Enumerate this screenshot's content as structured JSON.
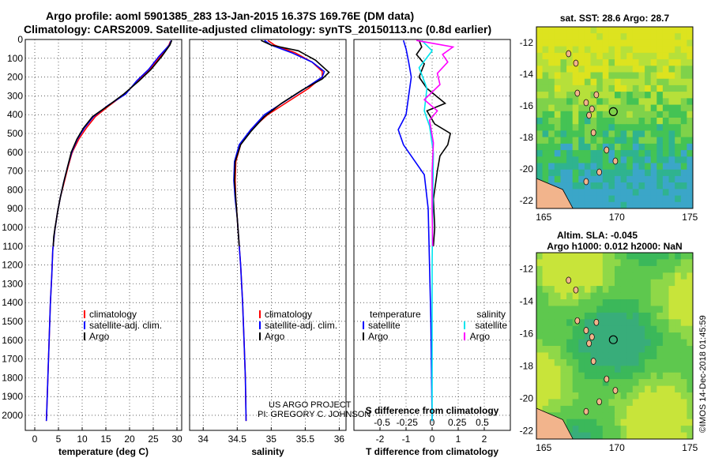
{
  "header": {
    "title_line1": "Argo profile: aoml 5901385_283 13-Jan-2015 16.37S 169.76E (DM data)",
    "title_line2": "Climatology: CARS2009. Satellite-adjusted climatology: synTS_20150113.nc (0.8d earlier)"
  },
  "credits": {
    "project": "US ARGO PROJECT",
    "pi": "PI: GREGORY C. JOHNSON",
    "imos": "©IMOS 14-Dec-2018 01:45:59"
  },
  "colors": {
    "climatology": "#ff0000",
    "satellite": "#0000ff",
    "argo": "#000000",
    "sal_satellite": "#00e5ee",
    "sal_argo": "#ff00ff",
    "land": "#f2b48c",
    "ocean": "#3cb84a",
    "marker": "#000000"
  },
  "chart_data": [
    {
      "type": "line",
      "id": "temperature",
      "xlabel": "temperature (deg C)",
      "ylabel": "",
      "xlim": [
        -2,
        31
      ],
      "ylim": [
        2080,
        0
      ],
      "xticks": [
        0,
        5,
        10,
        15,
        20,
        25,
        30
      ],
      "yticks": [
        0,
        100,
        200,
        300,
        400,
        500,
        600,
        700,
        800,
        900,
        1000,
        1100,
        1200,
        1300,
        1400,
        1500,
        1600,
        1700,
        1800,
        1900,
        2000
      ],
      "legend": [
        "climatology",
        "satellite-adj. clim.",
        "Argo"
      ],
      "legend_position": "bottom-center",
      "series": [
        {
          "name": "climatology",
          "color": "#ff0000",
          "points": [
            [
              28.6,
              10
            ],
            [
              28.3,
              30
            ],
            [
              26.5,
              90
            ],
            [
              24.2,
              160
            ],
            [
              21.8,
              220
            ],
            [
              19.0,
              290
            ],
            [
              15.8,
              350
            ],
            [
              12.8,
              410
            ],
            [
              10.9,
              470
            ],
            [
              9.3,
              530
            ],
            [
              7.9,
              600
            ],
            [
              7.0,
              680
            ],
            [
              6.2,
              760
            ],
            [
              5.4,
              840
            ],
            [
              4.8,
              920
            ],
            [
              4.2,
              1020
            ],
            [
              3.8,
              1120
            ],
            [
              3.6,
              1250
            ],
            [
              3.3,
              1400
            ],
            [
              3.1,
              1550
            ],
            [
              2.9,
              1700
            ],
            [
              2.7,
              1850
            ],
            [
              2.5,
              2000
            ],
            [
              2.45,
              2030
            ]
          ]
        },
        {
          "name": "satellite-adj. clim.",
          "color": "#0000ff",
          "points": [
            [
              28.8,
              5
            ],
            [
              28.4,
              30
            ],
            [
              26.2,
              90
            ],
            [
              24.0,
              160
            ],
            [
              21.5,
              220
            ],
            [
              19.2,
              290
            ],
            [
              15.5,
              350
            ],
            [
              12.4,
              410
            ],
            [
              10.5,
              470
            ],
            [
              9.0,
              530
            ],
            [
              7.8,
              600
            ],
            [
              6.9,
              680
            ],
            [
              6.1,
              760
            ],
            [
              5.4,
              840
            ],
            [
              4.8,
              920
            ],
            [
              4.2,
              1020
            ],
            [
              3.8,
              1120
            ],
            [
              3.6,
              1250
            ],
            [
              3.3,
              1400
            ],
            [
              3.1,
              1550
            ],
            [
              2.9,
              1700
            ],
            [
              2.7,
              1850
            ],
            [
              2.5,
              2000
            ],
            [
              2.45,
              2030
            ]
          ]
        },
        {
          "name": "Argo",
          "color": "#000000",
          "points": [
            [
              28.9,
              5
            ],
            [
              28.5,
              30
            ],
            [
              26.8,
              90
            ],
            [
              24.5,
              160
            ],
            [
              22.0,
              220
            ],
            [
              18.8,
              290
            ],
            [
              15.6,
              350
            ],
            [
              12.2,
              410
            ],
            [
              10.3,
              470
            ],
            [
              8.9,
              530
            ],
            [
              7.7,
              600
            ],
            [
              6.9,
              680
            ],
            [
              6.1,
              760
            ],
            [
              5.4,
              840
            ],
            [
              4.8,
              920
            ],
            [
              4.3,
              1000
            ],
            [
              4.0,
              1050
            ],
            [
              3.9,
              1100
            ]
          ]
        }
      ]
    },
    {
      "type": "line",
      "id": "salinity",
      "xlabel": "salinity",
      "ylabel": "",
      "xlim": [
        33.8,
        36.1
      ],
      "ylim": [
        2080,
        0
      ],
      "xticks": [
        34,
        34.5,
        35,
        35.5,
        36
      ],
      "legend": [
        "climatology",
        "satellite-adj. clim.",
        "Argo"
      ],
      "legend_position": "bottom-right",
      "series": [
        {
          "name": "climatology",
          "color": "#ff0000",
          "points": [
            [
              34.95,
              5
            ],
            [
              35.05,
              30
            ],
            [
              35.35,
              70
            ],
            [
              35.6,
              120
            ],
            [
              35.75,
              170
            ],
            [
              35.75,
              200
            ],
            [
              35.55,
              260
            ],
            [
              35.25,
              330
            ],
            [
              34.95,
              400
            ],
            [
              34.7,
              480
            ],
            [
              34.55,
              560
            ],
            [
              34.48,
              650
            ],
            [
              34.47,
              750
            ],
            [
              34.48,
              850
            ],
            [
              34.5,
              950
            ],
            [
              34.52,
              1050
            ],
            [
              34.55,
              1200
            ],
            [
              34.58,
              1400
            ],
            [
              34.6,
              1600
            ],
            [
              34.62,
              1800
            ],
            [
              34.63,
              2030
            ]
          ]
        },
        {
          "name": "satellite-adj. clim.",
          "color": "#0000ff",
          "points": [
            [
              34.9,
              5
            ],
            [
              35.0,
              30
            ],
            [
              35.3,
              70
            ],
            [
              35.6,
              120
            ],
            [
              35.78,
              170
            ],
            [
              35.75,
              200
            ],
            [
              35.5,
              260
            ],
            [
              35.2,
              330
            ],
            [
              34.9,
              400
            ],
            [
              34.7,
              480
            ],
            [
              34.53,
              560
            ],
            [
              34.46,
              650
            ],
            [
              34.45,
              750
            ],
            [
              34.47,
              850
            ],
            [
              34.5,
              950
            ],
            [
              34.52,
              1050
            ],
            [
              34.55,
              1200
            ],
            [
              34.58,
              1400
            ],
            [
              34.6,
              1600
            ],
            [
              34.62,
              1800
            ],
            [
              34.63,
              2030
            ]
          ]
        },
        {
          "name": "Argo",
          "color": "#000000",
          "points": [
            [
              34.85,
              5
            ],
            [
              35.0,
              30
            ],
            [
              35.4,
              60
            ],
            [
              35.65,
              110
            ],
            [
              35.85,
              175
            ],
            [
              35.75,
              210
            ],
            [
              35.45,
              270
            ],
            [
              35.15,
              340
            ],
            [
              34.9,
              410
            ],
            [
              34.7,
              490
            ],
            [
              34.55,
              560
            ],
            [
              34.47,
              650
            ],
            [
              34.46,
              750
            ],
            [
              34.48,
              850
            ],
            [
              34.5,
              950
            ],
            [
              34.52,
              1050
            ],
            [
              34.53,
              1100
            ]
          ]
        }
      ]
    },
    {
      "type": "line",
      "id": "difference",
      "xlabel": "T difference from climatology",
      "xlabel2": "S difference from climatology",
      "xlim": [
        -3,
        3
      ],
      "ylim": [
        2080,
        0
      ],
      "xticks": [
        -2,
        -1,
        0,
        1,
        2
      ],
      "xticks2": [
        -0.5,
        -0.25,
        0,
        0.25,
        0.5
      ],
      "legend_temperature": [
        "temperature",
        "satellite",
        "Argo"
      ],
      "legend_salinity": [
        "salinity",
        "satellite",
        "Argo"
      ],
      "series": [
        {
          "name": "T satellite",
          "color": "#0000ff",
          "points": [
            [
              -1.1,
              5
            ],
            [
              -1.0,
              50
            ],
            [
              -0.9,
              120
            ],
            [
              -0.8,
              200
            ],
            [
              -0.9,
              300
            ],
            [
              -1.0,
              400
            ],
            [
              -1.3,
              480
            ],
            [
              -1.1,
              560
            ],
            [
              -0.7,
              640
            ],
            [
              -0.3,
              720
            ],
            [
              -0.15,
              900
            ],
            [
              -0.1,
              1200
            ],
            [
              -0.05,
              1500
            ],
            [
              0,
              2030
            ]
          ]
        },
        {
          "name": "T Argo",
          "color": "#000000",
          "points": [
            [
              -0.5,
              5
            ],
            [
              -0.4,
              40
            ],
            [
              -0.6,
              80
            ],
            [
              -0.3,
              130
            ],
            [
              -0.5,
              200
            ],
            [
              -0.2,
              260
            ],
            [
              0.5,
              340
            ],
            [
              -0.2,
              380
            ],
            [
              0.1,
              450
            ],
            [
              0.7,
              500
            ],
            [
              0.6,
              560
            ],
            [
              0.3,
              620
            ],
            [
              0.2,
              700
            ],
            [
              0.05,
              850
            ],
            [
              0.1,
              1000
            ],
            [
              0.05,
              1100
            ]
          ]
        },
        {
          "name": "S satellite",
          "color": "#00e5ee",
          "points": [
            [
              -0.4,
              5
            ],
            [
              0,
              60
            ],
            [
              -0.5,
              150
            ],
            [
              -0.2,
              260
            ],
            [
              -0.3,
              380
            ],
            [
              -0.1,
              460
            ],
            [
              0.05,
              600
            ],
            [
              0.03,
              800
            ],
            [
              0.0,
              1200
            ],
            [
              0.0,
              2030
            ]
          ]
        },
        {
          "name": "S Argo",
          "color": "#ff00ff",
          "points": [
            [
              -0.6,
              5
            ],
            [
              0.8,
              40
            ],
            [
              0.4,
              80
            ],
            [
              0.6,
              120
            ],
            [
              0.2,
              180
            ],
            [
              0.3,
              240
            ],
            [
              -0.3,
              320
            ],
            [
              0.2,
              380
            ],
            [
              -0.1,
              430
            ],
            [
              0.05,
              550
            ],
            [
              0.0,
              700
            ],
            [
              0.0,
              900
            ],
            [
              0.02,
              1100
            ]
          ]
        }
      ]
    },
    {
      "type": "heatmap",
      "id": "sst-map",
      "title": "sat. SST: 28.6 Argo: 28.7",
      "xlim": [
        164.5,
        175.2
      ],
      "ylim": [
        -22.5,
        -11
      ],
      "xticks": [
        165,
        170,
        175
      ],
      "yticks": [
        -12,
        -14,
        -16,
        -18,
        -20,
        -22
      ],
      "marker": [
        169.76,
        -16.37
      ]
    },
    {
      "type": "heatmap",
      "id": "sla-map",
      "title": "Altim. SLA: -0.045",
      "subtitle": "Argo h1000: 0.012 h2000: NaN",
      "xlim": [
        164.5,
        175.2
      ],
      "ylim": [
        -22.5,
        -11
      ],
      "xticks": [
        165,
        170,
        175
      ],
      "yticks": [
        -12,
        -14,
        -16,
        -18,
        -20,
        -22
      ],
      "marker": [
        169.76,
        -16.37
      ]
    }
  ]
}
